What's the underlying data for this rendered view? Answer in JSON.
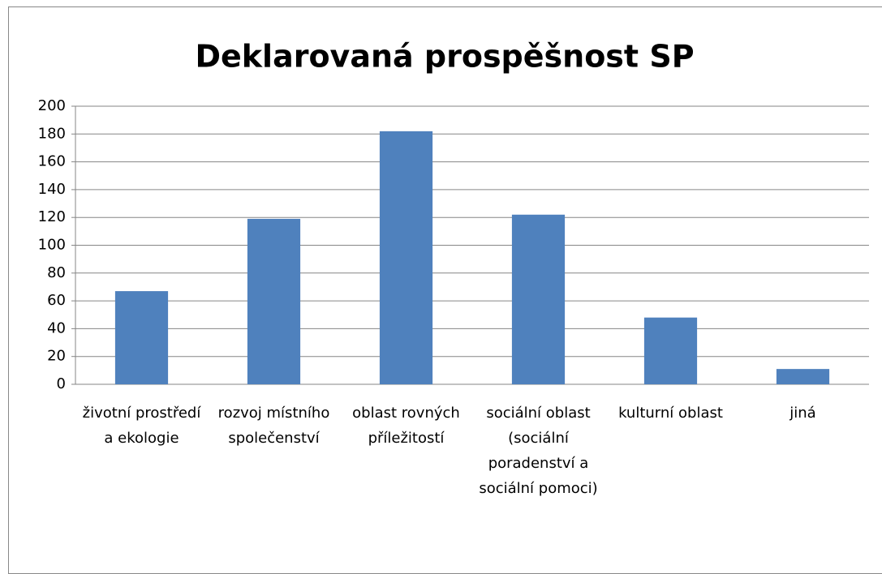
{
  "chart_data": {
    "type": "bar",
    "title": "Deklarovaná prospěšnost SP",
    "categories": [
      "životní prostředí a ekologie",
      "rozvoj místního společenství",
      "oblast rovných příležitostí",
      "sociální oblast (sociální poradenství a sociální pomoci)",
      "kulturní oblast",
      "jiná"
    ],
    "values": [
      67,
      119,
      182,
      122,
      48,
      11
    ],
    "color": "#4f81bd",
    "ylim": [
      0,
      200
    ],
    "yticks": [
      0,
      20,
      40,
      60,
      80,
      100,
      120,
      140,
      160,
      180,
      200
    ],
    "grid": true
  }
}
